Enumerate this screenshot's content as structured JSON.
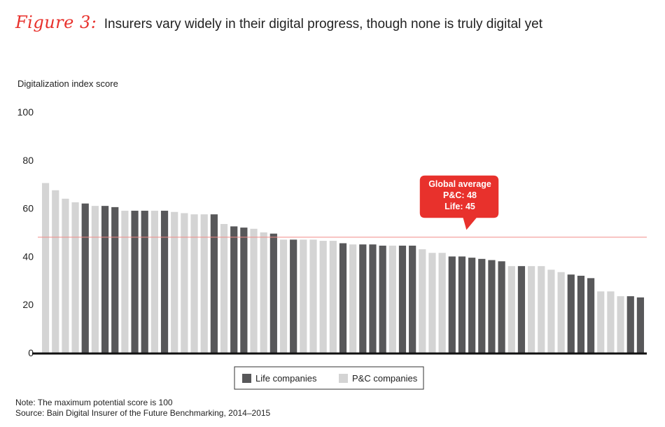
{
  "figure": {
    "label": "Figure 3:",
    "title": "Insurers vary widely in their digital progress, though none is truly digital yet"
  },
  "notes": {
    "note": "Note: The maximum potential score is 100",
    "source": "Source: Bain Digital Insurer of the Future Benchmarking, 2014–2015"
  },
  "callout": {
    "line1": "Global average",
    "line2": "P&C: 48",
    "line3": "Life: 45"
  },
  "colors": {
    "life": "#58585a",
    "pc": "#d4d4d4",
    "accent": "#e8312c",
    "average_line": "#f08a86"
  },
  "chart_data": {
    "type": "bar",
    "ylabel": "Digitalization index score",
    "ylim": [
      0,
      100
    ],
    "yticks": [
      0,
      20,
      40,
      60,
      80,
      100
    ],
    "grid": false,
    "legend_position": "bottom-center",
    "reference_line": {
      "value": 48
    },
    "series": [
      {
        "name": "Life companies",
        "key": "life"
      },
      {
        "name": "P&C companies",
        "key": "pc"
      }
    ],
    "bars": [
      {
        "type": "pc",
        "value": 70.5
      },
      {
        "type": "pc",
        "value": 67.5
      },
      {
        "type": "pc",
        "value": 64
      },
      {
        "type": "pc",
        "value": 62.5
      },
      {
        "type": "life",
        "value": 62
      },
      {
        "type": "pc",
        "value": 61
      },
      {
        "type": "life",
        "value": 61
      },
      {
        "type": "life",
        "value": 60.5
      },
      {
        "type": "pc",
        "value": 59
      },
      {
        "type": "life",
        "value": 59
      },
      {
        "type": "life",
        "value": 59
      },
      {
        "type": "pc",
        "value": 59
      },
      {
        "type": "life",
        "value": 59
      },
      {
        "type": "pc",
        "value": 58.5
      },
      {
        "type": "pc",
        "value": 58
      },
      {
        "type": "pc",
        "value": 57.5
      },
      {
        "type": "pc",
        "value": 57.5
      },
      {
        "type": "life",
        "value": 57.5
      },
      {
        "type": "pc",
        "value": 53.5
      },
      {
        "type": "life",
        "value": 52.5
      },
      {
        "type": "life",
        "value": 52
      },
      {
        "type": "pc",
        "value": 51.5
      },
      {
        "type": "pc",
        "value": 50
      },
      {
        "type": "life",
        "value": 49.5
      },
      {
        "type": "pc",
        "value": 47
      },
      {
        "type": "life",
        "value": 47
      },
      {
        "type": "pc",
        "value": 47
      },
      {
        "type": "pc",
        "value": 47
      },
      {
        "type": "pc",
        "value": 46.5
      },
      {
        "type": "pc",
        "value": 46.5
      },
      {
        "type": "life",
        "value": 45.5
      },
      {
        "type": "pc",
        "value": 45
      },
      {
        "type": "life",
        "value": 45
      },
      {
        "type": "life",
        "value": 45
      },
      {
        "type": "life",
        "value": 44.5
      },
      {
        "type": "pc",
        "value": 44.5
      },
      {
        "type": "life",
        "value": 44.5
      },
      {
        "type": "life",
        "value": 44.5
      },
      {
        "type": "pc",
        "value": 43
      },
      {
        "type": "pc",
        "value": 41.5
      },
      {
        "type": "pc",
        "value": 41.5
      },
      {
        "type": "life",
        "value": 40
      },
      {
        "type": "life",
        "value": 40
      },
      {
        "type": "life",
        "value": 39.5
      },
      {
        "type": "life",
        "value": 39
      },
      {
        "type": "life",
        "value": 38.5
      },
      {
        "type": "life",
        "value": 38
      },
      {
        "type": "pc",
        "value": 36
      },
      {
        "type": "life",
        "value": 36
      },
      {
        "type": "pc",
        "value": 36
      },
      {
        "type": "pc",
        "value": 36
      },
      {
        "type": "pc",
        "value": 34.5
      },
      {
        "type": "pc",
        "value": 33.5
      },
      {
        "type": "life",
        "value": 32.5
      },
      {
        "type": "life",
        "value": 32
      },
      {
        "type": "life",
        "value": 31
      },
      {
        "type": "pc",
        "value": 25.5
      },
      {
        "type": "pc",
        "value": 25.5
      },
      {
        "type": "pc",
        "value": 23.5
      },
      {
        "type": "life",
        "value": 23.5
      },
      {
        "type": "life",
        "value": 23
      }
    ]
  }
}
